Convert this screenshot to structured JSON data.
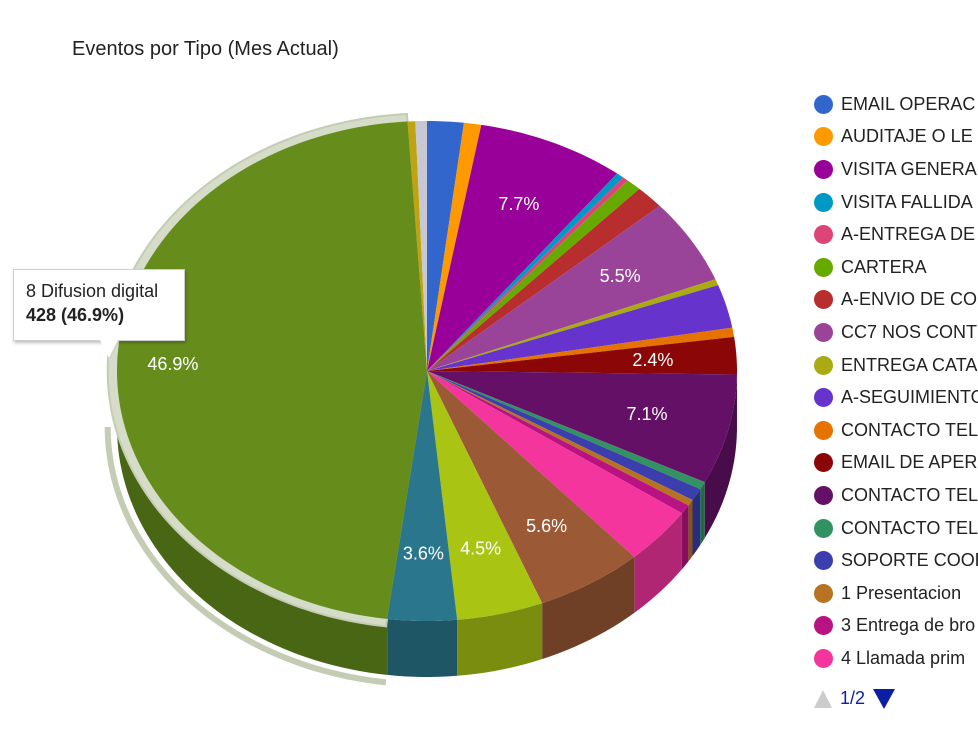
{
  "chart_data": {
    "type": "pie",
    "title": "Eventos por Tipo (Mes Actual)",
    "legend_position": "right",
    "slices": [
      {
        "name": "EMAIL OPERAC",
        "percent": 1.9,
        "color": "#3366cc",
        "label": ""
      },
      {
        "name": "AUDITAJE O LE",
        "percent": 0.9,
        "color": "#ff9900",
        "label": ""
      },
      {
        "name": "VISITA GENERA",
        "percent": 7.7,
        "color": "#990099",
        "label": "7.7%"
      },
      {
        "name": "VISITA FALLIDA",
        "percent": 0.4,
        "color": "#0099c6",
        "label": ""
      },
      {
        "name": "A-ENTREGA DE",
        "percent": 0.3,
        "color": "#dd4477",
        "label": ""
      },
      {
        "name": "CARTERA",
        "percent": 0.8,
        "color": "#66aa00",
        "label": ""
      },
      {
        "name": "A-ENVIO DE CO",
        "percent": 1.5,
        "color": "#b82e2e",
        "label": ""
      },
      {
        "name": "CC7 NOS CONT",
        "percent": 5.5,
        "color": "#994499",
        "label": "5.5%"
      },
      {
        "name": "ENTREGA CATA",
        "percent": 0.4,
        "color": "#aaaa11",
        "label": ""
      },
      {
        "name": "A-SEGUIMIENTO",
        "percent": 2.8,
        "color": "#6633cc",
        "label": ""
      },
      {
        "name": "CONTACTO TEL",
        "percent": 0.6,
        "color": "#e67300",
        "label": ""
      },
      {
        "name": "EMAIL DE APER",
        "percent": 2.4,
        "color": "#8b0707",
        "label": "2.4%"
      },
      {
        "name": "CONTACTO TEL",
        "percent": 7.1,
        "color": "#651067",
        "label": "7.1%"
      },
      {
        "name": "CONTACTO TEL",
        "percent": 0.5,
        "color": "#329262",
        "label": ""
      },
      {
        "name": "SOPORTE COOR",
        "percent": 0.8,
        "color": "#3b3eac",
        "label": ""
      },
      {
        "name": "1 Presentacion",
        "percent": 0.4,
        "color": "#b77322",
        "label": ""
      },
      {
        "name": "3 Entrega de bro",
        "percent": 0.6,
        "color": "#b91383",
        "label": ""
      },
      {
        "name": "4 Llamada prim",
        "percent": 3.7,
        "color": "#f4359e",
        "label": ""
      },
      {
        "name": "",
        "percent": 5.6,
        "color": "#9c5935",
        "label": "5.6%"
      },
      {
        "name": "",
        "percent": 4.5,
        "color": "#a9c413",
        "label": "4.5%"
      },
      {
        "name": "",
        "percent": 3.6,
        "color": "#2a778d",
        "label": "3.6%"
      },
      {
        "name": "8 Difusion digital",
        "percent": 46.9,
        "color": "#668d1c",
        "label": "46.9%"
      },
      {
        "name": "",
        "percent": 0.4,
        "color": "#bea413",
        "label": ""
      },
      {
        "name": "",
        "percent": 0.6,
        "color": "#c8c8d4",
        "label": ""
      }
    ]
  },
  "tooltip": {
    "name": "8 Difusion digital",
    "value": "428 (46.9%)"
  },
  "legend": {
    "visible_count": 18
  },
  "pager": {
    "text": "1/2"
  }
}
